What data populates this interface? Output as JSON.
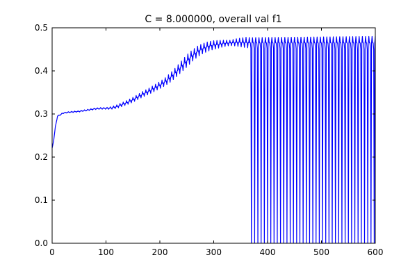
{
  "chart_data": {
    "type": "line",
    "title": "C = 8.000000, overall val f1",
    "xlabel": "",
    "ylabel": "",
    "xlim": [
      0,
      600
    ],
    "ylim": [
      0.0,
      0.5
    ],
    "xticks": [
      0,
      100,
      200,
      300,
      400,
      500,
      600
    ],
    "yticks": [
      0.0,
      0.1,
      0.2,
      0.3,
      0.4,
      0.5
    ],
    "xtick_labels": [
      "0",
      "100",
      "200",
      "300",
      "400",
      "500",
      "600"
    ],
    "ytick_labels": [
      "0.0",
      "0.1",
      "0.2",
      "0.3",
      "0.4",
      "0.5"
    ],
    "grid": false,
    "legend": "none",
    "series": [
      {
        "color": "#0000ff",
        "envelope_x": [
          0,
          3,
          6,
          10,
          15,
          20,
          30,
          40,
          50,
          60,
          70,
          80,
          90,
          100,
          110,
          120,
          130,
          140,
          150,
          160,
          170,
          180,
          190,
          200,
          210,
          220,
          230,
          240,
          250,
          260,
          270,
          280,
          290,
          300,
          310,
          320,
          330,
          340,
          350,
          360,
          370,
          380,
          400,
          450,
          500,
          550,
          600
        ],
        "envelope_y": [
          0.22,
          0.24,
          0.27,
          0.295,
          0.298,
          0.302,
          0.304,
          0.305,
          0.306,
          0.308,
          0.31,
          0.312,
          0.313,
          0.313,
          0.314,
          0.317,
          0.322,
          0.327,
          0.333,
          0.34,
          0.347,
          0.353,
          0.36,
          0.367,
          0.375,
          0.385,
          0.397,
          0.41,
          0.423,
          0.435,
          0.445,
          0.452,
          0.457,
          0.46,
          0.462,
          0.464,
          0.465,
          0.466,
          0.466,
          0.466,
          0.465,
          0.465,
          0.465,
          0.465,
          0.465,
          0.465,
          0.465
        ],
        "oscillation_x": [
          0,
          100,
          120,
          200,
          250,
          300,
          330,
          360,
          600
        ],
        "oscillation_amp": [
          0.001,
          0.002,
          0.004,
          0.008,
          0.014,
          0.01,
          0.006,
          0.012,
          0.015
        ],
        "oscillation_period": 6,
        "drop_start_x": 370,
        "drop_period": 6,
        "drop_value": 0.0
      }
    ]
  }
}
